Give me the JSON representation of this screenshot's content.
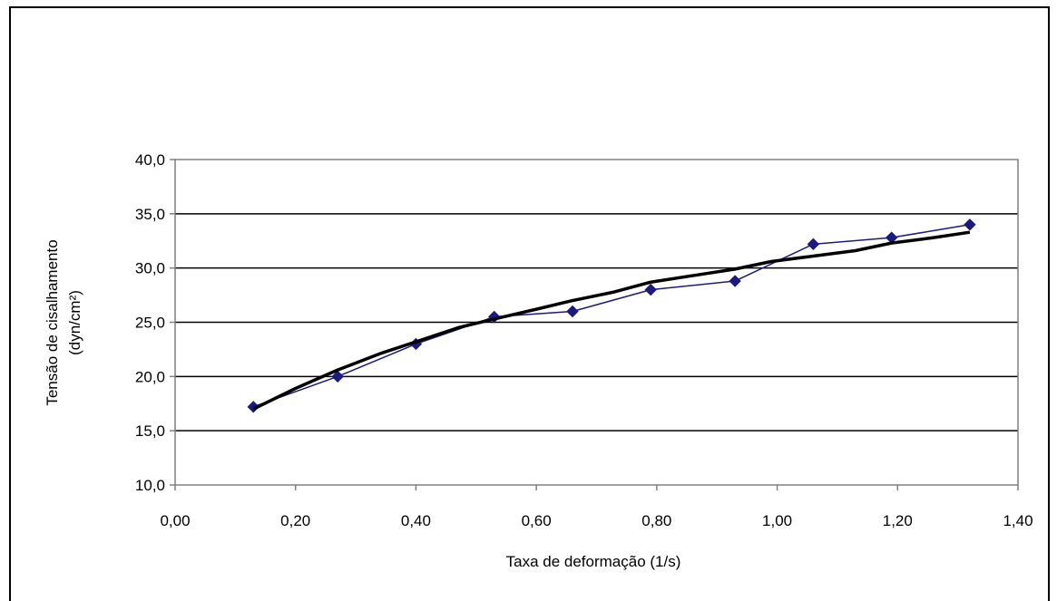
{
  "chart_data": {
    "type": "line",
    "title": "",
    "xlabel": "Taxa de deformação (1/s)",
    "ylabel_lines": [
      "Tensão de cisalhamento",
      "(dyn/cm²)"
    ],
    "xlim": [
      0,
      1.4
    ],
    "ylim": [
      10,
      40
    ],
    "x_ticks": [
      0,
      0.2,
      0.4,
      0.6,
      0.8,
      1.0,
      1.2,
      1.4
    ],
    "x_tick_labels": [
      "0,00",
      "0,20",
      "0,40",
      "0,60",
      "0,80",
      "1,00",
      "1,20",
      "1,40"
    ],
    "y_ticks": [
      10,
      15,
      20,
      25,
      30,
      35,
      40
    ],
    "y_tick_labels": [
      "10,0",
      "15,0",
      "20,0",
      "25,0",
      "30,0",
      "35,0",
      "40,0"
    ],
    "grid": "horizontal",
    "legend": "none",
    "series": [
      {
        "color": "#1a1a80",
        "marker": "diamond",
        "x": [
          0.13,
          0.27,
          0.4,
          0.53,
          0.66,
          0.79,
          0.93,
          1.06,
          1.19,
          1.32
        ],
        "y": [
          17.2,
          20.0,
          23.0,
          25.5,
          26.0,
          28.0,
          28.8,
          32.2,
          32.8,
          34.0
        ]
      },
      {
        "color": "#000000",
        "marker": "none",
        "x": [
          0.13,
          0.2,
          0.27,
          0.34,
          0.4,
          0.47,
          0.53,
          0.6,
          0.66,
          0.73,
          0.79,
          0.86,
          0.93,
          0.99,
          1.06,
          1.13,
          1.19,
          1.26,
          1.32
        ],
        "y": [
          17.0,
          18.9,
          20.6,
          22.1,
          23.2,
          24.5,
          25.3,
          26.2,
          27.0,
          27.8,
          28.7,
          29.3,
          29.9,
          30.6,
          31.1,
          31.6,
          32.3,
          32.8,
          33.3
        ]
      }
    ]
  }
}
